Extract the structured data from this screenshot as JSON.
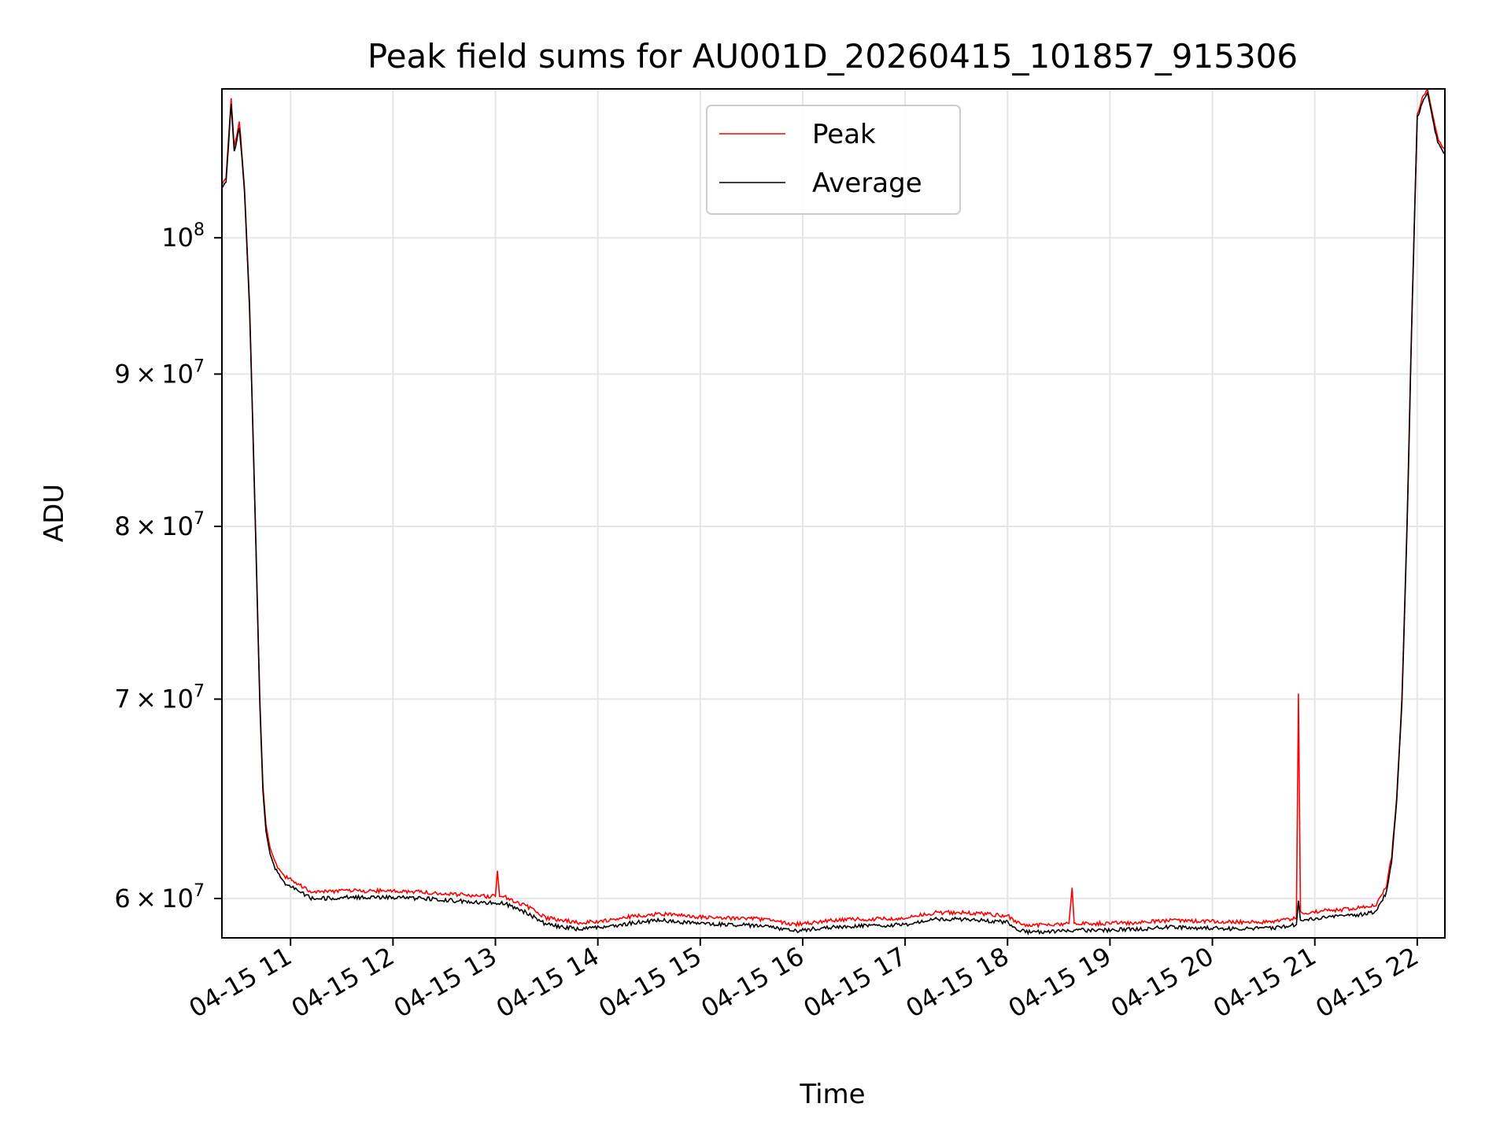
{
  "chart_data": {
    "type": "line",
    "title": "Peak field sums for AU001D_20260415_101857_915306",
    "xlabel": "Time",
    "ylabel": "ADU",
    "y_scale": "log",
    "grid": true,
    "legend_position": "top-center",
    "xlim": [
      10.33,
      22.27
    ],
    "ylim": [
      58200000,
      112200000
    ],
    "x_ticks": [
      {
        "value": 11,
        "label": "04-15 11"
      },
      {
        "value": 12,
        "label": "04-15 12"
      },
      {
        "value": 13,
        "label": "04-15 13"
      },
      {
        "value": 14,
        "label": "04-15 14"
      },
      {
        "value": 15,
        "label": "04-15 15"
      },
      {
        "value": 16,
        "label": "04-15 16"
      },
      {
        "value": 17,
        "label": "04-15 17"
      },
      {
        "value": 18,
        "label": "04-15 18"
      },
      {
        "value": 19,
        "label": "04-15 19"
      },
      {
        "value": 20,
        "label": "04-15 20"
      },
      {
        "value": 21,
        "label": "04-15 21"
      },
      {
        "value": 22,
        "label": "04-15 22"
      }
    ],
    "y_ticks": [
      {
        "value": 60000000,
        "coef": "6",
        "exp": "7"
      },
      {
        "value": 70000000,
        "coef": "7",
        "exp": "7"
      },
      {
        "value": 80000000,
        "coef": "8",
        "exp": "7"
      },
      {
        "value": 90000000,
        "coef": "9",
        "exp": "7"
      },
      {
        "value": 100000000,
        "coef": "",
        "exp": "8"
      }
    ],
    "series": [
      {
        "name": "Peak",
        "color": "#ff0000",
        "x": [
          10.33,
          10.37,
          10.42,
          10.45,
          10.5,
          10.55,
          10.6,
          10.65,
          10.7,
          10.73,
          10.76,
          10.8,
          10.85,
          10.9,
          10.95,
          11.0,
          11.1,
          11.2,
          11.3,
          11.5,
          11.8,
          12.0,
          12.3,
          12.6,
          12.9,
          13.0,
          13.02,
          13.04,
          13.1,
          13.3,
          13.5,
          13.8,
          14.0,
          14.3,
          14.6,
          15.0,
          15.3,
          15.6,
          15.9,
          16.0,
          16.3,
          16.6,
          17.0,
          17.3,
          17.6,
          18.0,
          18.1,
          18.2,
          18.4,
          18.6,
          18.63,
          18.65,
          18.7,
          19.0,
          19.3,
          19.6,
          19.8,
          20.0,
          20.3,
          20.6,
          20.82,
          20.84,
          20.86,
          20.9,
          21.0,
          21.3,
          21.5,
          21.6,
          21.7,
          21.75,
          21.8,
          21.85,
          21.9,
          21.95,
          22.0,
          22.05,
          22.1,
          22.15,
          22.2,
          22.27
        ],
        "values": [
          104200000,
          104800000,
          111400000,
          107200000,
          109500000,
          104000000,
          95000000,
          82000000,
          70000000,
          65500000,
          63500000,
          62400000,
          61700000,
          61300000,
          61000000,
          60900000,
          60600000,
          60300000,
          60300000,
          60350000,
          60350000,
          60350000,
          60300000,
          60200000,
          60100000,
          60100000,
          61300000,
          60150000,
          60050000,
          59650000,
          59100000,
          58900000,
          58950000,
          59150000,
          59300000,
          59150000,
          59100000,
          59050000,
          58800000,
          58850000,
          59000000,
          59050000,
          59100000,
          59350000,
          59350000,
          59200000,
          58900000,
          58750000,
          58800000,
          58850000,
          60500000,
          58900000,
          58850000,
          58850000,
          58900000,
          59000000,
          58950000,
          58950000,
          58900000,
          58950000,
          59100000,
          70300000,
          59400000,
          59250000,
          59400000,
          59500000,
          59600000,
          59700000,
          60600000,
          62000000,
          65000000,
          70000000,
          80000000,
          95000000,
          110000000,
          111400000,
          112200000,
          110000000,
          108000000,
          107000000
        ]
      },
      {
        "name": "Average",
        "color": "#000000",
        "x": [
          10.33,
          10.37,
          10.42,
          10.45,
          10.5,
          10.55,
          10.6,
          10.65,
          10.7,
          10.73,
          10.76,
          10.8,
          10.85,
          10.9,
          10.95,
          11.0,
          11.1,
          11.2,
          11.3,
          11.5,
          11.8,
          12.0,
          12.3,
          12.6,
          12.9,
          13.0,
          13.1,
          13.3,
          13.5,
          13.8,
          14.0,
          14.3,
          14.6,
          15.0,
          15.3,
          15.6,
          15.9,
          16.0,
          16.3,
          16.6,
          17.0,
          17.3,
          17.6,
          18.0,
          18.1,
          18.2,
          18.4,
          18.7,
          19.0,
          19.3,
          19.6,
          19.8,
          20.0,
          20.3,
          20.6,
          20.82,
          20.84,
          20.86,
          20.9,
          21.0,
          21.3,
          21.5,
          21.6,
          21.7,
          21.75,
          21.8,
          21.85,
          21.9,
          21.95,
          22.0,
          22.05,
          22.1,
          22.15,
          22.2,
          22.27
        ],
        "values": [
          103900000,
          104500000,
          110900000,
          106800000,
          109000000,
          103700000,
          94700000,
          81700000,
          69700000,
          65200000,
          63200000,
          62100000,
          61400000,
          61000000,
          60700000,
          60600000,
          60300000,
          60000000,
          60000000,
          60050000,
          60050000,
          60050000,
          60000000,
          59900000,
          59800000,
          59800000,
          59750000,
          59350000,
          58800000,
          58600000,
          58650000,
          58850000,
          59000000,
          58850000,
          58800000,
          58750000,
          58500000,
          58550000,
          58700000,
          58750000,
          58800000,
          59050000,
          59050000,
          58900000,
          58600000,
          58450000,
          58500000,
          58550000,
          58550000,
          58600000,
          58700000,
          58650000,
          58650000,
          58600000,
          58650000,
          58800000,
          59900000,
          59000000,
          58950000,
          59100000,
          59200000,
          59300000,
          59400000,
          60300000,
          61700000,
          64700000,
          69700000,
          79700000,
          94700000,
          109700000,
          111100000,
          111900000,
          109700000,
          107700000,
          106700000
        ]
      }
    ]
  }
}
